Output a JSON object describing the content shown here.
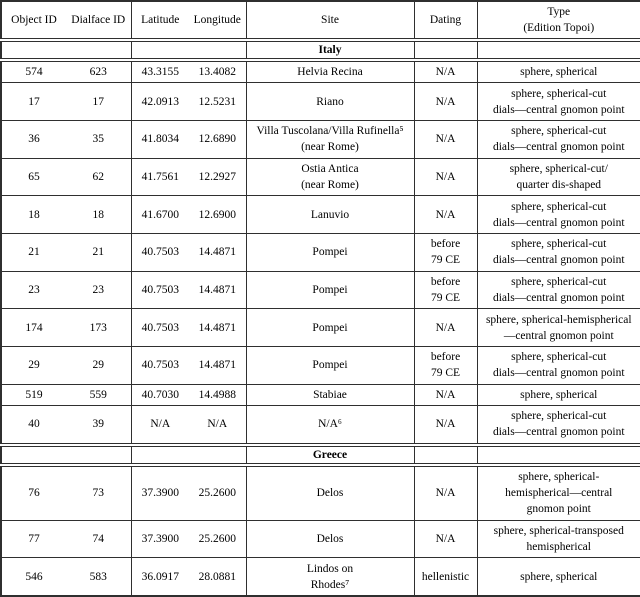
{
  "page": {
    "background": "#ffffff",
    "text_color": "#000000",
    "border_color": "#2f2f2f"
  },
  "table": {
    "header": {
      "object_id": "Object ID",
      "dialface_id": "Dialface ID",
      "latitude": "Latitude",
      "longitude": "Longitude",
      "site": "Site",
      "dating": "Dating",
      "type_line1": "Type",
      "type_line2": "(Edition Topoi)"
    },
    "sections": [
      {
        "label": "Italy",
        "rows": [
          {
            "object_id": "574",
            "dialface_id": "623",
            "latitude": "43.3155",
            "longitude": "13.4082",
            "site": [
              "Helvia Recina"
            ],
            "dating": [
              "N/A"
            ],
            "type": [
              "sphere, spherical"
            ]
          },
          {
            "object_id": "17",
            "dialface_id": "17",
            "latitude": "42.0913",
            "longitude": "12.5231",
            "site": [
              "Riano"
            ],
            "dating": [
              "N/A"
            ],
            "type": [
              "sphere, spherical-cut",
              "dials—central gnomon point"
            ]
          },
          {
            "object_id": "36",
            "dialface_id": "35",
            "latitude": "41.8034",
            "longitude": "12.6890",
            "site": [
              "Villa Tuscolana/Villa Rufinella⁵",
              "(near Rome)"
            ],
            "dating": [
              "N/A"
            ],
            "type": [
              "sphere, spherical-cut",
              "dials—central gnomon point"
            ]
          },
          {
            "object_id": "65",
            "dialface_id": "62",
            "latitude": "41.7561",
            "longitude": "12.2927",
            "site": [
              "Ostia Antica",
              "(near Rome)"
            ],
            "dating": [
              "N/A"
            ],
            "type": [
              "sphere, spherical-cut/",
              "quarter dis-shaped"
            ]
          },
          {
            "object_id": "18",
            "dialface_id": "18",
            "latitude": "41.6700",
            "longitude": "12.6900",
            "site": [
              "Lanuvio"
            ],
            "dating": [
              "N/A"
            ],
            "type": [
              "sphere, spherical-cut",
              "dials—central gnomon point"
            ]
          },
          {
            "object_id": "21",
            "dialface_id": "21",
            "latitude": "40.7503",
            "longitude": "14.4871",
            "site": [
              "Pompei"
            ],
            "dating": [
              "before",
              "79 CE"
            ],
            "type": [
              "sphere, spherical-cut",
              "dials—central gnomon point"
            ]
          },
          {
            "object_id": "23",
            "dialface_id": "23",
            "latitude": "40.7503",
            "longitude": "14.4871",
            "site": [
              "Pompei"
            ],
            "dating": [
              "before",
              "79 CE"
            ],
            "type": [
              "sphere, spherical-cut",
              "dials—central gnomon point"
            ]
          },
          {
            "object_id": "174",
            "dialface_id": "173",
            "latitude": "40.7503",
            "longitude": "14.4871",
            "site": [
              "Pompei"
            ],
            "dating": [
              "N/A"
            ],
            "type": [
              "sphere, spherical-hemispherical",
              "—central gnomon point"
            ]
          },
          {
            "object_id": "29",
            "dialface_id": "29",
            "latitude": "40.7503",
            "longitude": "14.4871",
            "site": [
              "Pompei"
            ],
            "dating": [
              "before",
              "79 CE"
            ],
            "type": [
              "sphere, spherical-cut",
              "dials—central gnomon point"
            ]
          },
          {
            "object_id": "519",
            "dialface_id": "559",
            "latitude": "40.7030",
            "longitude": "14.4988",
            "site": [
              "Stabiae"
            ],
            "dating": [
              "N/A"
            ],
            "type": [
              "sphere, spherical"
            ]
          },
          {
            "object_id": "40",
            "dialface_id": "39",
            "latitude": "N/A",
            "longitude": "N/A",
            "site": [
              "N/A⁶"
            ],
            "dating": [
              "N/A"
            ],
            "type": [
              "sphere, spherical-cut",
              "dials—central gnomon point"
            ]
          }
        ]
      },
      {
        "label": "Greece",
        "rows": [
          {
            "object_id": "76",
            "dialface_id": "73",
            "latitude": "37.3900",
            "longitude": "25.2600",
            "site": [
              "Delos"
            ],
            "dating": [
              "N/A"
            ],
            "type": [
              "sphere, spherical-",
              "hemispherical—central",
              "gnomon point"
            ]
          },
          {
            "object_id": "77",
            "dialface_id": "74",
            "latitude": "37.3900",
            "longitude": "25.2600",
            "site": [
              "Delos"
            ],
            "dating": [
              "N/A"
            ],
            "type": [
              "sphere, spherical-transposed",
              "hemispherical"
            ]
          },
          {
            "object_id": "546",
            "dialface_id": "583",
            "latitude": "36.0917",
            "longitude": "28.0881",
            "site": [
              "Lindos on",
              "Rhodes⁷"
            ],
            "dating": [
              "hellenistic"
            ],
            "type": [
              "sphere, spherical"
            ]
          }
        ]
      }
    ]
  }
}
